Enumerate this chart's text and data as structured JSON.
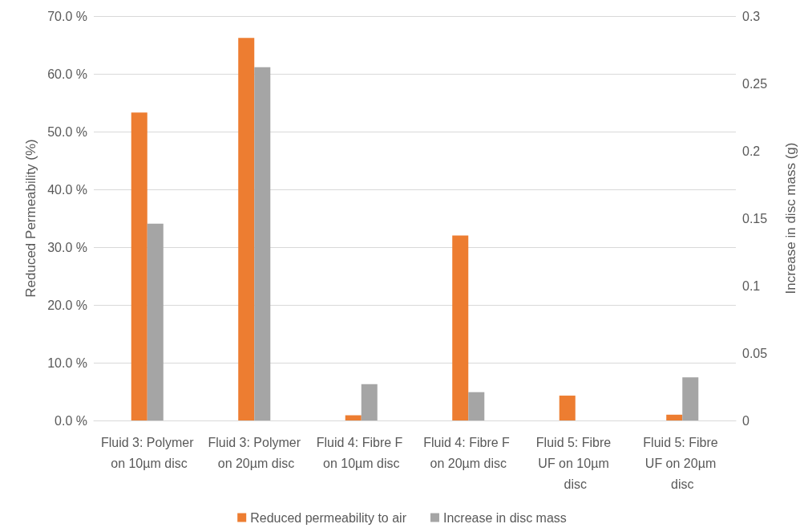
{
  "chart_data": {
    "type": "bar",
    "ylabel": "Reduced Permeability (%)",
    "y2label": "Increase in disc mass (g)",
    "categories": [
      "Fluid 3: Polymer on 10µm disc",
      "Fluid 3: Polymer on 20µm disc",
      "Fluid 4: Fibre F on 10µm disc",
      "Fluid 4: Fibre F on 20µm disc",
      "Fluid 5: Fibre UF on 10µm disc",
      "Fluid 5: Fibre UF on 20µm disc"
    ],
    "series": [
      {
        "name": "Reduced permeability to air",
        "color": "#ed7d31",
        "values": [
          53.3,
          66.2,
          0.9,
          32.0,
          4.3,
          1.0
        ]
      },
      {
        "name": "Increase in disc mass",
        "color": "#a5a5a5",
        "axis": "y2",
        "values": [
          0.146,
          0.262,
          0.027,
          0.021,
          0,
          0.032
        ]
      }
    ],
    "ylim": [
      0,
      70
    ],
    "yticks": [
      {
        "value": 0,
        "label": "0.0 %"
      },
      {
        "value": 10,
        "label": "10.0 %"
      },
      {
        "value": 20,
        "label": "20.0 %"
      },
      {
        "value": 30,
        "label": "30.0 %"
      },
      {
        "value": 40,
        "label": "40.0 %"
      },
      {
        "value": 50,
        "label": "50.0 %"
      },
      {
        "value": 60,
        "label": "60.0 %"
      },
      {
        "value": 70,
        "label": "70.0 %"
      }
    ],
    "y2lim": [
      0,
      0.3
    ],
    "y2ticks": [
      0,
      0.05,
      0.1,
      0.15,
      0.2,
      0.25,
      0.3
    ],
    "grid": "y",
    "legend": "bottom"
  }
}
